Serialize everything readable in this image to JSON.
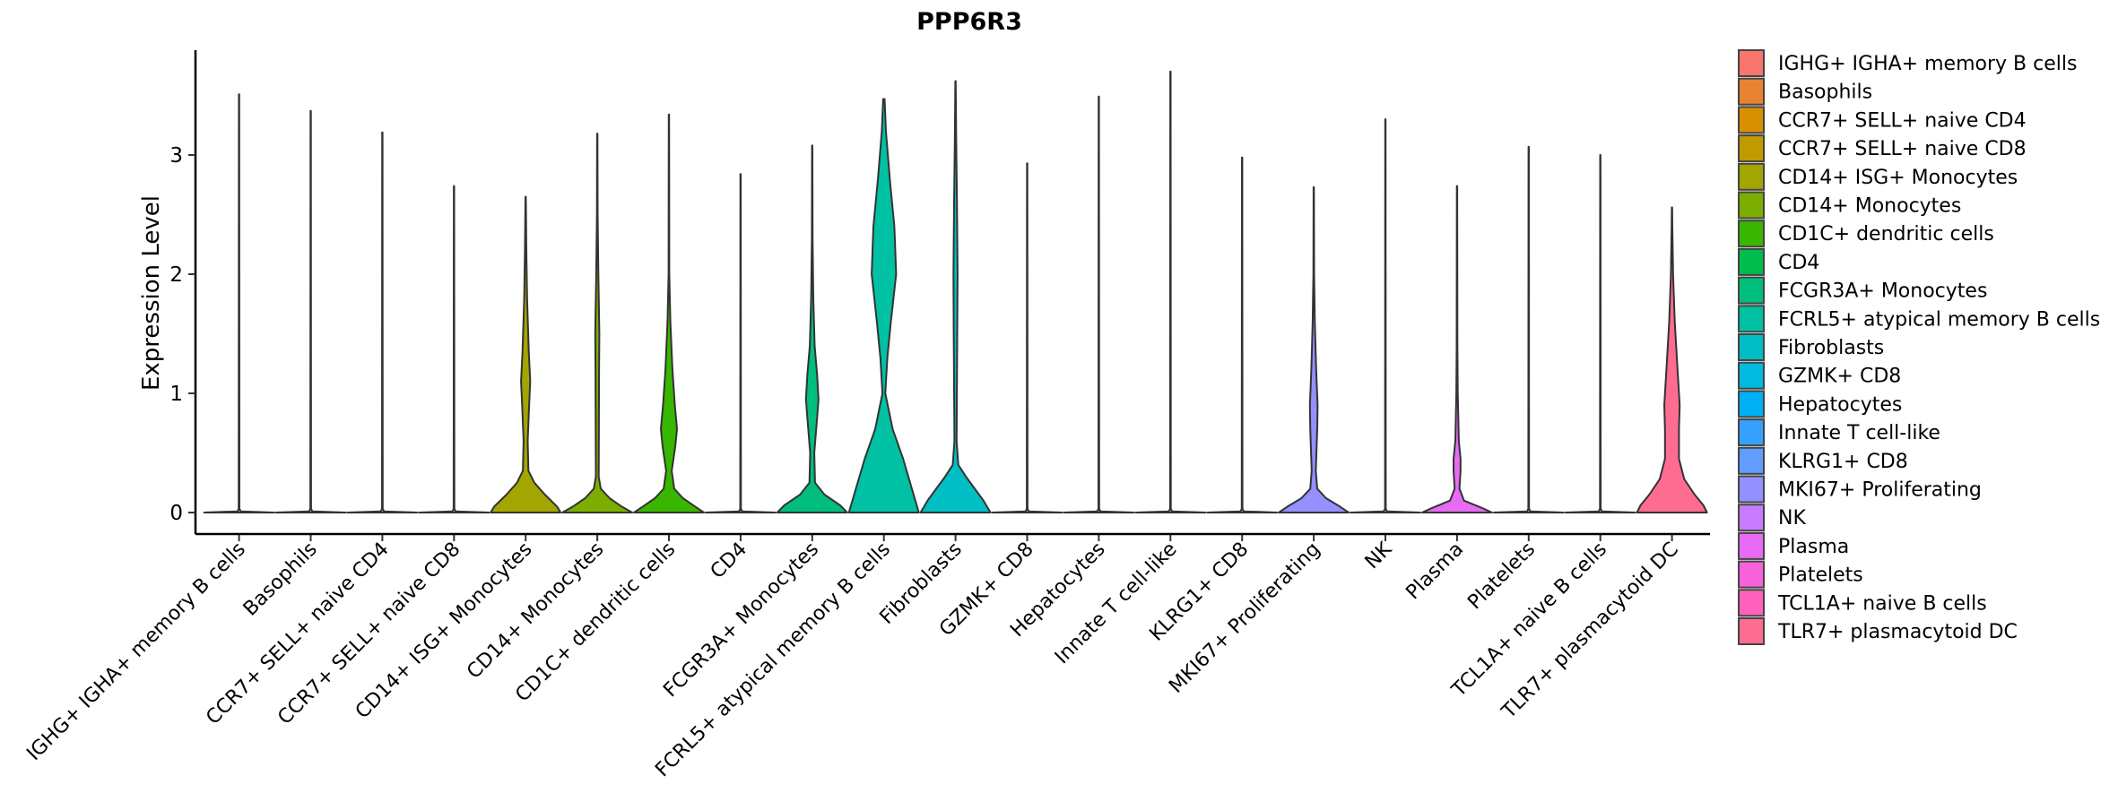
{
  "chart_data": {
    "type": "violin",
    "title": "PPP6R3",
    "xlabel": "",
    "ylabel": "Expression Level",
    "ylim": [
      -0.18,
      3.85
    ],
    "yticks": [
      0,
      1,
      2,
      3
    ],
    "grid": false,
    "legend_position": "right",
    "categories": [
      {
        "name": "IGHG+ IGHA+ memory B cells",
        "legend": " IGHG+ IGHA+ memory B cells",
        "color": "#F8766D",
        "max": 3.51,
        "profile": [
          [
            0,
            1
          ],
          [
            0.01,
            0.05
          ],
          [
            0.03,
            0.01
          ]
        ]
      },
      {
        "name": "Basophils",
        "color": "#EA8331",
        "max": 3.37,
        "profile": [
          [
            0,
            1
          ],
          [
            0.01,
            0.05
          ],
          [
            0.03,
            0.01
          ]
        ]
      },
      {
        "name": "CCR7+ SELL+ naive CD4",
        "color": "#D89000",
        "max": 3.19,
        "profile": [
          [
            0,
            1
          ],
          [
            0.01,
            0.05
          ],
          [
            0.03,
            0.01
          ]
        ]
      },
      {
        "name": "CCR7+ SELL+ naive CD8",
        "color": "#C09B00",
        "max": 2.74,
        "profile": [
          [
            0,
            1
          ],
          [
            0.01,
            0.05
          ],
          [
            0.03,
            0.01
          ]
        ]
      },
      {
        "name": "CD14+ ISG+ Monocytes",
        "color": "#A3A500",
        "max": 2.65,
        "profile": [
          [
            0,
            1
          ],
          [
            0.05,
            0.9
          ],
          [
            0.15,
            0.55
          ],
          [
            0.25,
            0.25
          ],
          [
            0.35,
            0.08
          ],
          [
            0.6,
            0.06
          ],
          [
            0.9,
            0.1
          ],
          [
            1.1,
            0.13
          ],
          [
            1.35,
            0.09
          ],
          [
            1.8,
            0.04
          ],
          [
            2.2,
            0.02
          ]
        ]
      },
      {
        "name": "CD14+ Monocytes",
        "color": "#7CAE00",
        "max": 3.18,
        "profile": [
          [
            0,
            1
          ],
          [
            0.05,
            0.7
          ],
          [
            0.12,
            0.35
          ],
          [
            0.2,
            0.1
          ],
          [
            0.3,
            0.04
          ],
          [
            1.2,
            0.05
          ],
          [
            1.5,
            0.06
          ],
          [
            2.0,
            0.03
          ],
          [
            2.5,
            0.01
          ]
        ]
      },
      {
        "name": "CD1C+ dendritic cells",
        "color": "#39B600",
        "max": 3.34,
        "profile": [
          [
            0,
            1
          ],
          [
            0.05,
            0.75
          ],
          [
            0.12,
            0.4
          ],
          [
            0.2,
            0.15
          ],
          [
            0.35,
            0.08
          ],
          [
            0.55,
            0.18
          ],
          [
            0.7,
            0.23
          ],
          [
            0.9,
            0.17
          ],
          [
            1.2,
            0.1
          ],
          [
            1.6,
            0.04
          ],
          [
            2.0,
            0.01
          ]
        ]
      },
      {
        "name": "CD4",
        "color": "#00BB4E",
        "max": 2.84,
        "profile": [
          [
            0,
            1
          ],
          [
            0.01,
            0.05
          ],
          [
            0.03,
            0.01
          ]
        ]
      },
      {
        "name": "FCGR3A+ Monocytes",
        "color": "#00BF7D",
        "max": 3.08,
        "profile": [
          [
            0,
            1
          ],
          [
            0.06,
            0.8
          ],
          [
            0.15,
            0.35
          ],
          [
            0.25,
            0.08
          ],
          [
            0.5,
            0.06
          ],
          [
            0.8,
            0.14
          ],
          [
            0.95,
            0.18
          ],
          [
            1.15,
            0.14
          ],
          [
            1.4,
            0.07
          ],
          [
            1.8,
            0.03
          ],
          [
            2.3,
            0.01
          ]
        ]
      },
      {
        "name": "FCRL5+ atypical memory B cells",
        "color": "#00C1A3",
        "max": 3.47,
        "profile": [
          [
            0,
            1
          ],
          [
            0.2,
            0.8
          ],
          [
            0.45,
            0.55
          ],
          [
            0.7,
            0.25
          ],
          [
            1.0,
            0.04
          ],
          [
            1.3,
            0.1
          ],
          [
            1.6,
            0.2
          ],
          [
            2.0,
            0.35
          ],
          [
            2.4,
            0.3
          ],
          [
            2.8,
            0.17
          ],
          [
            3.2,
            0.06
          ],
          [
            3.47,
            0.02
          ]
        ]
      },
      {
        "name": "Fibroblasts",
        "color": "#00BFC4",
        "max": 3.62,
        "profile": [
          [
            0,
            1
          ],
          [
            0.1,
            0.8
          ],
          [
            0.2,
            0.55
          ],
          [
            0.3,
            0.3
          ],
          [
            0.4,
            0.08
          ],
          [
            0.6,
            0.03
          ],
          [
            1.5,
            0.05
          ],
          [
            2.0,
            0.06
          ],
          [
            2.6,
            0.04
          ],
          [
            3.1,
            0.02
          ]
        ]
      },
      {
        "name": "GZMK+ CD8",
        "color": "#00BAE0",
        "max": 2.93,
        "profile": [
          [
            0,
            1
          ],
          [
            0.01,
            0.05
          ],
          [
            0.03,
            0.01
          ]
        ]
      },
      {
        "name": "Hepatocytes",
        "color": "#00B0F6",
        "max": 3.49,
        "profile": [
          [
            0,
            1
          ],
          [
            0.01,
            0.05
          ],
          [
            0.03,
            0.01
          ]
        ]
      },
      {
        "name": "Innate T cell-like",
        "color": "#35A2FF",
        "max": 3.7,
        "profile": [
          [
            0,
            1
          ],
          [
            0.01,
            0.05
          ],
          [
            0.03,
            0.01
          ]
        ]
      },
      {
        "name": "KLRG1+ CD8",
        "color": "#619CFF",
        "max": 2.98,
        "profile": [
          [
            0,
            1
          ],
          [
            0.01,
            0.05
          ],
          [
            0.03,
            0.01
          ]
        ]
      },
      {
        "name": "MKI67+ Proliferating",
        "color": "#9590FF",
        "max": 2.73,
        "profile": [
          [
            0,
            1
          ],
          [
            0.05,
            0.75
          ],
          [
            0.12,
            0.35
          ],
          [
            0.2,
            0.1
          ],
          [
            0.35,
            0.06
          ],
          [
            0.7,
            0.1
          ],
          [
            0.9,
            0.11
          ],
          [
            1.2,
            0.07
          ],
          [
            1.6,
            0.03
          ],
          [
            2.0,
            0.01
          ]
        ]
      },
      {
        "name": "NK",
        "color": "#C77CFF",
        "max": 3.3,
        "profile": [
          [
            0,
            1
          ],
          [
            0.01,
            0.05
          ],
          [
            0.03,
            0.01
          ]
        ]
      },
      {
        "name": "Plasma",
        "color": "#E76BF3",
        "max": 2.74,
        "profile": [
          [
            0,
            1
          ],
          [
            0.04,
            0.7
          ],
          [
            0.1,
            0.2
          ],
          [
            0.2,
            0.07
          ],
          [
            0.35,
            0.1
          ],
          [
            0.45,
            0.1
          ],
          [
            0.6,
            0.05
          ],
          [
            1.0,
            0.02
          ],
          [
            1.4,
            0.01
          ]
        ]
      },
      {
        "name": "Platelets",
        "color": "#FA62DB",
        "max": 3.07,
        "profile": [
          [
            0,
            1
          ],
          [
            0.01,
            0.05
          ],
          [
            0.03,
            0.01
          ]
        ]
      },
      {
        "name": "TCL1A+ naive B cells",
        "color": "#FF62BC",
        "max": 3.0,
        "profile": [
          [
            0,
            1
          ],
          [
            0.01,
            0.05
          ],
          [
            0.03,
            0.01
          ]
        ]
      },
      {
        "name": "TLR7+ plasmacytoid DC",
        "color": "#FF6C91",
        "max": 2.56,
        "profile": [
          [
            0,
            1
          ],
          [
            0.06,
            0.9
          ],
          [
            0.15,
            0.65
          ],
          [
            0.28,
            0.35
          ],
          [
            0.45,
            0.2
          ],
          [
            0.7,
            0.2
          ],
          [
            0.9,
            0.22
          ],
          [
            1.2,
            0.16
          ],
          [
            1.6,
            0.08
          ],
          [
            2.0,
            0.03
          ],
          [
            2.4,
            0.01
          ]
        ]
      }
    ]
  }
}
